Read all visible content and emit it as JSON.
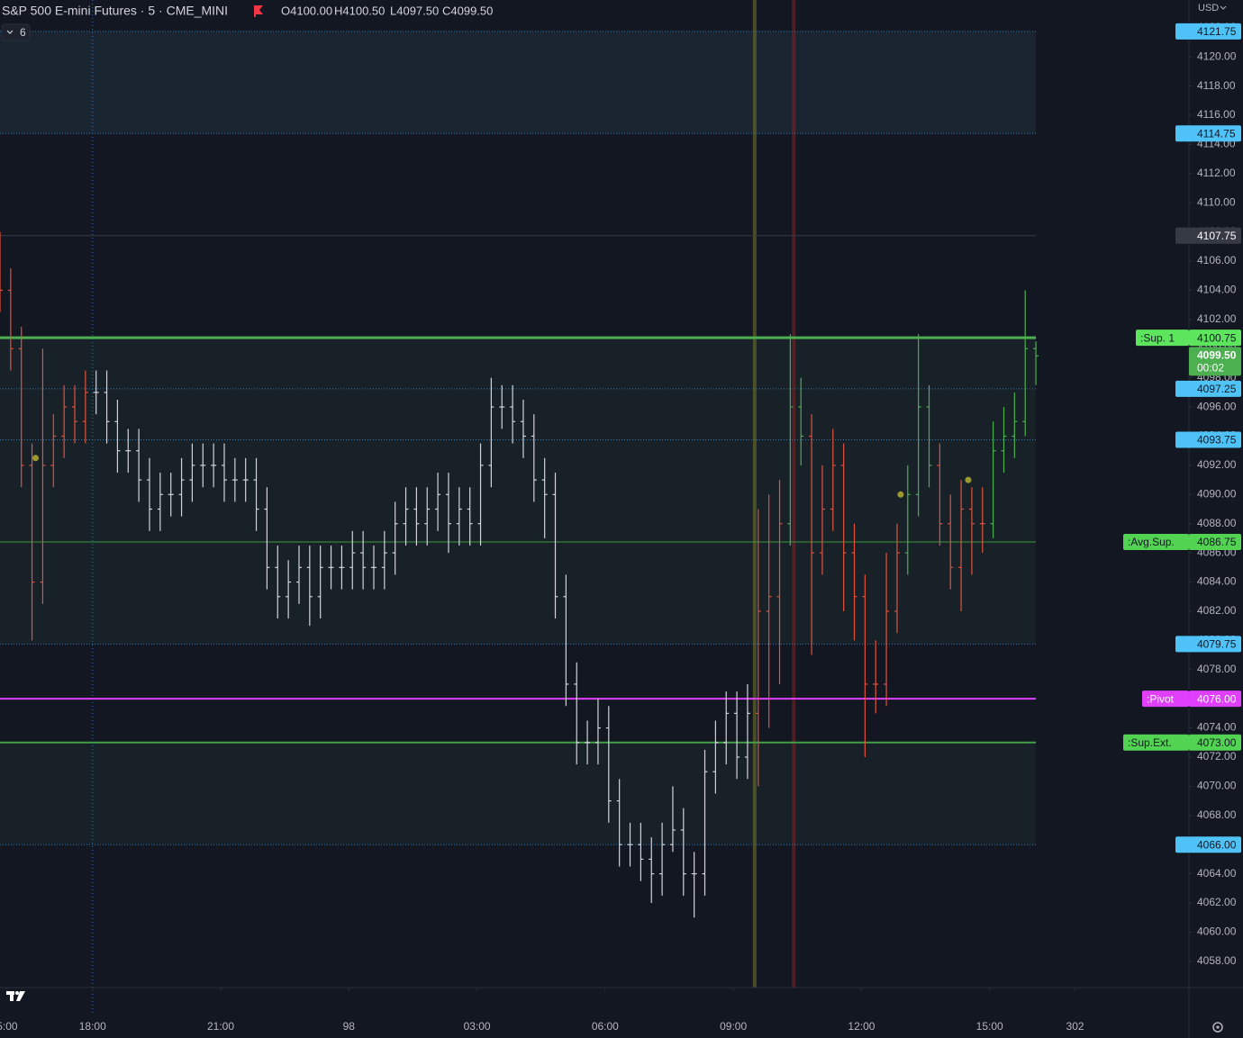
{
  "header": {
    "symbol": "S&P 500 E-mini Futures · 5 · CME_MINI",
    "open": "O4100.00",
    "high": "H4100.50",
    "low": "L4097.50",
    "close": "C4099.50",
    "indicators": "6",
    "currency": "USD"
  },
  "chart_data": {
    "type": "ohlc",
    "x": [
      0,
      3,
      6,
      9,
      12,
      15,
      18,
      21,
      24,
      27,
      30,
      33,
      36,
      39,
      42,
      45,
      48,
      51,
      54,
      57,
      60,
      63,
      66,
      69,
      72,
      75,
      78,
      81,
      84,
      87,
      90,
      93,
      96,
      99,
      102,
      105,
      108,
      111,
      114,
      117,
      120,
      123,
      126,
      129,
      132,
      135,
      138,
      141,
      144,
      147,
      150,
      153,
      156,
      159,
      162,
      165,
      168,
      171,
      174,
      177,
      180,
      183,
      186,
      189,
      192,
      195,
      198,
      201,
      204,
      207,
      210,
      213,
      216,
      219,
      222,
      225,
      228,
      231,
      234,
      237,
      240,
      243,
      246,
      249,
      252,
      255,
      258,
      261,
      264,
      267,
      270,
      273,
      276,
      279,
      282,
      285,
      288,
      291
    ],
    "open": [
      4106,
      4104,
      4100,
      4092,
      4084,
      4092,
      4094,
      4096,
      4095,
      4097,
      4097,
      4095,
      4093,
      4093,
      4091,
      4089,
      4090,
      4090,
      4091,
      4092,
      4092,
      4092,
      4091,
      4091,
      4091,
      4089,
      4085,
      4083,
      4084,
      4085,
      4083,
      4085,
      4085,
      4085,
      4086,
      4085,
      4085,
      4086,
      4088,
      4089,
      4088,
      4089,
      4090,
      4088,
      4089,
      4088,
      4092,
      4096,
      4096,
      4095,
      4094,
      4091,
      4090,
      4083,
      4077,
      4073,
      4073,
      4074,
      4069,
      4066,
      4066,
      4065,
      4064,
      4066,
      4067,
      4064,
      4064,
      4071,
      4073,
      4075,
      4072,
      4075,
      4082,
      4083,
      4088,
      4096,
      4094,
      4086,
      4089,
      4092,
      4086,
      4083,
      4077,
      4077,
      4082,
      4086,
      4090,
      4096,
      4092,
      4088,
      4085,
      4089,
      4088,
      4088,
      4093,
      4094,
      4095,
      4100
    ],
    "high": [
      4108,
      4105.5,
      4101.5,
      4093.5,
      4100,
      4095.5,
      4097.5,
      4097.5,
      4098.5,
      4098.5,
      4098.5,
      4096.5,
      4094.5,
      4094.5,
      4092.5,
      4091.5,
      4091.5,
      4092.5,
      4093.5,
      4093.5,
      4093.5,
      4093.5,
      4092.5,
      4092.5,
      4092.5,
      4090.5,
      4086.5,
      4085.5,
      4086.5,
      4086.5,
      4086.5,
      4086.5,
      4086.5,
      4087.5,
      4087.5,
      4086.5,
      4087.5,
      4089.5,
      4090.5,
      4090.5,
      4090.5,
      4091.5,
      4091.5,
      4090.5,
      4090.5,
      4093.5,
      4098,
      4097.5,
      4097.5,
      4096.5,
      4095.5,
      4092.5,
      4091.5,
      4084.5,
      4078.5,
      4074.5,
      4076,
      4075.5,
      4070.5,
      4067.5,
      4067.5,
      4066.5,
      4067.5,
      4070,
      4068.5,
      4065.5,
      4072.5,
      4074.5,
      4076.5,
      4076.5,
      4077,
      4089,
      4090,
      4091,
      4101,
      4098,
      4095.5,
      4092,
      4094.5,
      4093.5,
      4088,
      4084.5,
      4080,
      4086,
      4088,
      4092,
      4101,
      4097.5,
      4093.5,
      4090,
      4091,
      4090.5,
      4090.5,
      4095,
      4096,
      4097,
      4104,
      4100.5
    ],
    "low": [
      4102.5,
      4098.5,
      4090.5,
      4080,
      4082.5,
      4090.5,
      4092.5,
      4093.5,
      4093.5,
      4095.5,
      4093.5,
      4091.5,
      4091.5,
      4089.5,
      4087.5,
      4087.5,
      4088.5,
      4088.5,
      4089.5,
      4090.5,
      4090.5,
      4089.5,
      4089.5,
      4089.5,
      4087.5,
      4083.5,
      4081.5,
      4081.5,
      4082.5,
      4081,
      4081.5,
      4083.5,
      4083.5,
      4083.5,
      4083.5,
      4083.5,
      4083.5,
      4084.5,
      4086.5,
      4086.5,
      4086.5,
      4087.5,
      4086,
      4086.5,
      4086.5,
      4086.5,
      4090.5,
      4094.5,
      4093.5,
      4092.5,
      4089.5,
      4087,
      4081.5,
      4075.5,
      4071.5,
      4071.5,
      4071.5,
      4067.5,
      4064.5,
      4064.5,
      4063.5,
      4062,
      4062.5,
      4065.5,
      4062.5,
      4061,
      4062.5,
      4069.5,
      4071.5,
      4070.5,
      4070.5,
      4070,
      4074,
      4077,
      4086.5,
      4092,
      4079,
      4084.5,
      4087.5,
      4082,
      4080,
      4072,
      4075,
      4075.5,
      4080.5,
      4084.5,
      4088.5,
      4090.5,
      4086.5,
      4083.5,
      4082,
      4084.5,
      4086,
      4087,
      4091.5,
      4092.5,
      4094,
      4097.5
    ],
    "close": [
      4104,
      4100,
      4092,
      4084,
      4092,
      4094,
      4096,
      4095,
      4097,
      4097,
      4095,
      4093,
      4093,
      4091,
      4089,
      4090,
      4090,
      4091,
      4092,
      4092,
      4092,
      4091,
      4091,
      4091,
      4089,
      4085,
      4083,
      4084,
      4085,
      4083,
      4085,
      4085,
      4085,
      4086,
      4085,
      4085,
      4086,
      4088,
      4089,
      4088,
      4089,
      4090,
      4088,
      4089,
      4088,
      4092,
      4096,
      4096,
      4095,
      4094,
      4091,
      4090,
      4083,
      4077,
      4073,
      4073,
      4074,
      4069,
      4066,
      4066,
      4065,
      4064,
      4066,
      4067,
      4064,
      4064,
      4071,
      4073,
      4075,
      4072,
      4075,
      4082,
      4083,
      4088,
      4096,
      4094,
      4086,
      4089,
      4092,
      4086,
      4083,
      4077,
      4077,
      4082,
      4086,
      4090,
      4096,
      4092,
      4088,
      4085,
      4089,
      4088,
      4088,
      4093,
      4094,
      4095,
      4100,
      4099.5
    ],
    "bar_colors": [
      "#e0533d",
      "#e0533d",
      "#e0533d",
      "#e0533d",
      "#e0533d",
      "#e0533d",
      "#e0533d",
      "#e0533d",
      "#e0533d",
      "#d1d4dc",
      "#d1d4dc",
      "#d1d4dc",
      "#d1d4dc",
      "#d1d4dc",
      "#d1d4dc",
      "#d1d4dc",
      "#d1d4dc",
      "#d1d4dc",
      "#d1d4dc",
      "#d1d4dc",
      "#d1d4dc",
      "#d1d4dc",
      "#d1d4dc",
      "#d1d4dc",
      "#d1d4dc",
      "#d1d4dc",
      "#d1d4dc",
      "#d1d4dc",
      "#d1d4dc",
      "#d1d4dc",
      "#d1d4dc",
      "#d1d4dc",
      "#d1d4dc",
      "#d1d4dc",
      "#d1d4dc",
      "#d1d4dc",
      "#d1d4dc",
      "#d1d4dc",
      "#d1d4dc",
      "#d1d4dc",
      "#d1d4dc",
      "#d1d4dc",
      "#d1d4dc",
      "#d1d4dc",
      "#d1d4dc",
      "#d1d4dc",
      "#d1d4dc",
      "#d1d4dc",
      "#d1d4dc",
      "#d1d4dc",
      "#d1d4dc",
      "#d1d4dc",
      "#d1d4dc",
      "#d1d4dc",
      "#d1d4dc",
      "#d1d4dc",
      "#d1d4dc",
      "#d1d4dc",
      "#d1d4dc",
      "#d1d4dc",
      "#d1d4dc",
      "#d1d4dc",
      "#d1d4dc",
      "#d1d4dc",
      "#d1d4dc",
      "#d1d4dc",
      "#d1d4dc",
      "#d1d4dc",
      "#d1d4dc",
      "#d1d4dc",
      "#d1d4dc",
      "#e0533d",
      "#e0533d",
      "#e0533d",
      "#4caf50",
      "#4caf50",
      "#e0533d",
      "#e0533d",
      "#e0533d",
      "#e0533d",
      "#e0533d",
      "#e0533d",
      "#e0533d",
      "#e0533d",
      "#e0533d",
      "#4caf50",
      "#4caf50",
      "#4caf50",
      "#e0533d",
      "#e0533d",
      "#e0533d",
      "#e0533d",
      "#e0533d",
      "#4caf50",
      "#4caf50",
      "#4caf50",
      "#4caf50",
      "#4caf50"
    ],
    "xlim": [
      0,
      334
    ],
    "xticks": [
      {
        "value": 2,
        "label": "5:00"
      },
      {
        "value": 26,
        "label": "18:00"
      },
      {
        "value": 62,
        "label": "21:00"
      },
      98,
      {
        "value": 134,
        "label": "03:00"
      },
      {
        "value": 170,
        "label": "06:00"
      },
      {
        "value": 206,
        "label": "09:00"
      },
      {
        "value": 242,
        "label": "12:00"
      },
      {
        "value": 278,
        "label": "15:00"
      },
      302
    ],
    "ylim": [
      4056.2,
      4123.9
    ],
    "yticks": [
      {
        "value": 4058,
        "label": "4058.00"
      },
      {
        "value": 4060,
        "label": "4060.00"
      },
      {
        "value": 4062,
        "label": "4062.00"
      },
      {
        "value": 4064,
        "label": "4064.00"
      },
      {
        "value": 4066,
        "label": "4066.00"
      },
      {
        "value": 4068,
        "label": "4068.00"
      },
      {
        "value": 4070,
        "label": "4070.00"
      },
      {
        "value": 4072,
        "label": "4072.00"
      },
      {
        "value": 4074,
        "label": "4074.00"
      },
      {
        "value": 4076,
        "label": "4076.00"
      },
      {
        "value": 4078,
        "label": "4078.00"
      },
      {
        "value": 4080,
        "label": "4080.00"
      },
      {
        "value": 4082,
        "label": "4082.00"
      },
      {
        "value": 4084,
        "label": "4084.00"
      },
      {
        "value": 4086,
        "label": "4086.00"
      },
      {
        "value": 4088,
        "label": "4088.00"
      },
      {
        "value": 4090,
        "label": "4090.00"
      },
      {
        "value": 4092,
        "label": "4092.00"
      },
      {
        "value": 4094,
        "label": "4094.00"
      },
      {
        "value": 4096,
        "label": "4096.00"
      },
      {
        "value": 4098,
        "label": "4098.00"
      },
      {
        "value": 4100,
        "label": "4100.00"
      },
      {
        "value": 4102,
        "label": "4102.00"
      },
      {
        "value": 4104,
        "label": "4104.00"
      },
      {
        "value": 4106,
        "label": "4106.00"
      },
      {
        "value": 4108,
        "label": "4108.00"
      },
      {
        "value": 4110,
        "label": "4110.00"
      },
      {
        "value": 4112,
        "label": "4112.00"
      },
      {
        "value": 4114,
        "label": "4114.00"
      },
      {
        "value": 4116,
        "label": "4116.00"
      },
      {
        "value": 4118,
        "label": "4118.00"
      },
      {
        "value": 4120,
        "label": "4120.00"
      },
      {
        "value": 4122,
        "label": "4122.00"
      }
    ],
    "levels": [
      {
        "value": 4121.75,
        "color": "#2e7bb5",
        "style": "dotted",
        "width": 1,
        "box_color": "#4fc3f7",
        "text_color": "#131722"
      },
      {
        "value": 4114.75,
        "color": "#2e7bb5",
        "style": "dotted",
        "width": 1,
        "box_color": "#4fc3f7",
        "text_color": "#131722"
      },
      {
        "value": 4107.75,
        "color": "#363a45",
        "style": "solid",
        "width": 1,
        "box_color": "#363a45",
        "text_color": "#ffffff"
      },
      {
        "value": 4100.75,
        "tag": ":Sup. 1",
        "color": "#4caf50",
        "style": "solid",
        "width": 3,
        "box_color": "#5ee55e",
        "text_color": "#131722"
      },
      {
        "value": 4097.25,
        "color": "#2e7bb5",
        "style": "dotted",
        "width": 1,
        "box_color": "#4fc3f7",
        "text_color": "#131722"
      },
      {
        "value": 4093.75,
        "color": "#2e7bb5",
        "style": "dotted",
        "width": 1,
        "box_color": "#4fc3f7",
        "text_color": "#131722"
      },
      {
        "value": 4086.75,
        "tag": ":Avg.Sup.",
        "color": "#3d9a3d",
        "style": "solid",
        "width": 1,
        "box_color": "#52d352",
        "text_color": "#131722"
      },
      {
        "value": 4079.75,
        "color": "#2e7bb5",
        "style": "dotted",
        "width": 1,
        "box_color": "#4fc3f7",
        "text_color": "#131722"
      },
      {
        "value": {
          "value": 4076,
          "label": "4076.00"
        },
        "tag": ":Pivot",
        "color": "#e040fb",
        "style": "solid",
        "width": 2,
        "box_color": "#e040fb",
        "text_color": "#ffffff"
      },
      {
        "value": {
          "value": 4073,
          "label": "4073.00"
        },
        "tag": ":Sup.Ext.",
        "color": "#43a047",
        "style": "solid",
        "width": 2,
        "box_color": "#52d352",
        "text_color": "#131722"
      },
      {
        "value": {
          "value": 4066,
          "label": "4066.00"
        },
        "color": "#2e7bb5",
        "style": "dotted",
        "width": 1,
        "box_color": "#4fc3f7",
        "text_color": "#131722"
      }
    ],
    "current": {
      "value": {
        "value": 4099.5,
        "label": "4099.50"
      },
      "countdown": "00:02",
      "color": "#4caf50"
    },
    "session_line": 26,
    "vlines": [
      {
        "x": 212,
        "color": "rgba(120,120,40,0.55)"
      },
      {
        "x": 223,
        "color": "rgba(120,35,35,0.6)"
      }
    ],
    "markers": [
      {
        "x": 10,
        "y": 4092.5,
        "color": "#9c9a2e"
      },
      {
        "x": 253,
        "y": 4090,
        "color": "#9c9a2e"
      },
      {
        "x": 272,
        "y": 4091,
        "color": "#9c9a2e"
      }
    ]
  }
}
